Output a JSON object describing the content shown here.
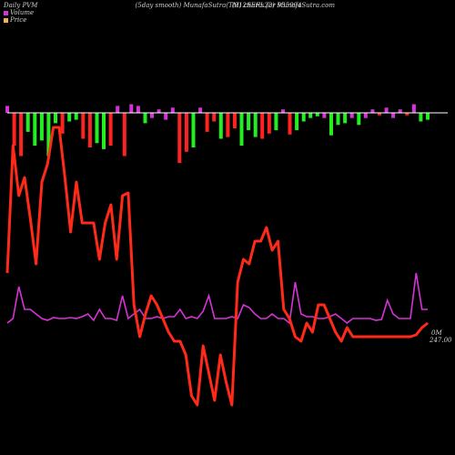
{
  "header": {
    "left": "Daily PVM",
    "center": "(5day smooth) MunafaSutra(TM) charts for 935994",
    "right": "(912SEFL22) MunafaSutra.com"
  },
  "legend": [
    {
      "label": "Volume",
      "color": "#d633d6"
    },
    {
      "label": "Price",
      "color": "#f0b060"
    }
  ],
  "chart_data": {
    "type": "combo",
    "volume_bars": {
      "baseline_color": "#ffffff",
      "values": [
        {
          "v": 8,
          "c": "#d633d6"
        },
        {
          "v": -38,
          "c": "#ff2222"
        },
        {
          "v": -50,
          "c": "#ff2222"
        },
        {
          "v": -22,
          "c": "#22ee22"
        },
        {
          "v": -38,
          "c": "#22ee22"
        },
        {
          "v": -32,
          "c": "#22ee22"
        },
        {
          "v": -50,
          "c": "#22ee22"
        },
        {
          "v": -12,
          "c": "#22ee22"
        },
        {
          "v": -24,
          "c": "#ff2222"
        },
        {
          "v": -10,
          "c": "#22ee22"
        },
        {
          "v": -8,
          "c": "#22ee22"
        },
        {
          "v": -30,
          "c": "#ff2222"
        },
        {
          "v": -40,
          "c": "#ff2222"
        },
        {
          "v": -35,
          "c": "#22ee22"
        },
        {
          "v": -42,
          "c": "#22ee22"
        },
        {
          "v": -38,
          "c": "#ff2222"
        },
        {
          "v": 8,
          "c": "#d633d6"
        },
        {
          "v": -50,
          "c": "#ff2222"
        },
        {
          "v": 10,
          "c": "#d633d6"
        },
        {
          "v": 8,
          "c": "#d633d6"
        },
        {
          "v": -12,
          "c": "#22ee22"
        },
        {
          "v": -6,
          "c": "#d633d6"
        },
        {
          "v": 4,
          "c": "#d633d6"
        },
        {
          "v": -8,
          "c": "#d633d6"
        },
        {
          "v": 6,
          "c": "#d633d6"
        },
        {
          "v": -58,
          "c": "#ff2222"
        },
        {
          "v": -45,
          "c": "#ff2222"
        },
        {
          "v": -40,
          "c": "#22ee22"
        },
        {
          "v": 6,
          "c": "#d633d6"
        },
        {
          "v": -22,
          "c": "#ff2222"
        },
        {
          "v": -10,
          "c": "#ff2222"
        },
        {
          "v": -30,
          "c": "#22ee22"
        },
        {
          "v": -28,
          "c": "#ff2222"
        },
        {
          "v": -18,
          "c": "#ff2222"
        },
        {
          "v": -38,
          "c": "#22ee22"
        },
        {
          "v": -20,
          "c": "#22ee22"
        },
        {
          "v": -28,
          "c": "#22ee22"
        },
        {
          "v": -30,
          "c": "#ff2222"
        },
        {
          "v": -24,
          "c": "#ff2222"
        },
        {
          "v": -20,
          "c": "#22ee22"
        },
        {
          "v": 4,
          "c": "#d633d6"
        },
        {
          "v": -25,
          "c": "#ff2222"
        },
        {
          "v": -20,
          "c": "#22ee22"
        },
        {
          "v": -10,
          "c": "#22ee22"
        },
        {
          "v": -6,
          "c": "#22ee22"
        },
        {
          "v": -4,
          "c": "#22ee22"
        },
        {
          "v": -6,
          "c": "#d633d6"
        },
        {
          "v": -26,
          "c": "#22ee22"
        },
        {
          "v": -14,
          "c": "#22ee22"
        },
        {
          "v": -12,
          "c": "#22ee22"
        },
        {
          "v": -6,
          "c": "#d633d6"
        },
        {
          "v": -14,
          "c": "#22ee22"
        },
        {
          "v": -6,
          "c": "#d633d6"
        },
        {
          "v": 4,
          "c": "#d633d6"
        },
        {
          "v": -3,
          "c": "#ff2222"
        },
        {
          "v": 6,
          "c": "#d633d6"
        },
        {
          "v": -6,
          "c": "#d633d6"
        },
        {
          "v": 4,
          "c": "#d633d6"
        },
        {
          "v": -3,
          "c": "#ff2222"
        },
        {
          "v": 10,
          "c": "#d633d6"
        },
        {
          "v": -10,
          "c": "#22ee22"
        },
        {
          "v": -8,
          "c": "#22ee22"
        }
      ]
    },
    "price_line": {
      "color": "#ff2a1a",
      "values": [
        150,
        290,
        235,
        255,
        210,
        160,
        250,
        270,
        310,
        310,
        255,
        195,
        250,
        205,
        205,
        205,
        165,
        205,
        225,
        165,
        235,
        238,
        115,
        80,
        105,
        125,
        115,
        100,
        85,
        75,
        75,
        60,
        15,
        5,
        70,
        40,
        10,
        60,
        30,
        5,
        140,
        165,
        160,
        185,
        185,
        200,
        175,
        185,
        110,
        100,
        80,
        75,
        95,
        85,
        115,
        115,
        100,
        85,
        75,
        90,
        80,
        80,
        80,
        80,
        80,
        80,
        80,
        80,
        80,
        80,
        80,
        82,
        90,
        95
      ]
    },
    "volume_line": {
      "color": "#d633d6",
      "values": [
        95,
        100,
        135,
        110,
        110,
        105,
        100,
        98,
        101,
        100,
        100,
        101,
        100,
        102,
        105,
        98,
        110,
        100,
        100,
        98,
        125,
        100,
        105,
        110,
        100,
        100,
        102,
        100,
        102,
        102,
        110,
        100,
        102,
        100,
        108,
        125,
        100,
        100,
        100,
        102,
        100,
        115,
        112,
        105,
        100,
        100,
        105,
        100,
        100,
        95,
        140,
        105,
        102,
        102,
        100,
        100,
        102,
        105,
        100,
        95,
        100,
        100,
        100,
        100,
        98,
        99,
        120,
        105,
        100,
        100,
        100,
        150,
        110,
        110
      ]
    },
    "last_label": {
      "line1": "0M",
      "line2": "247.00"
    }
  }
}
